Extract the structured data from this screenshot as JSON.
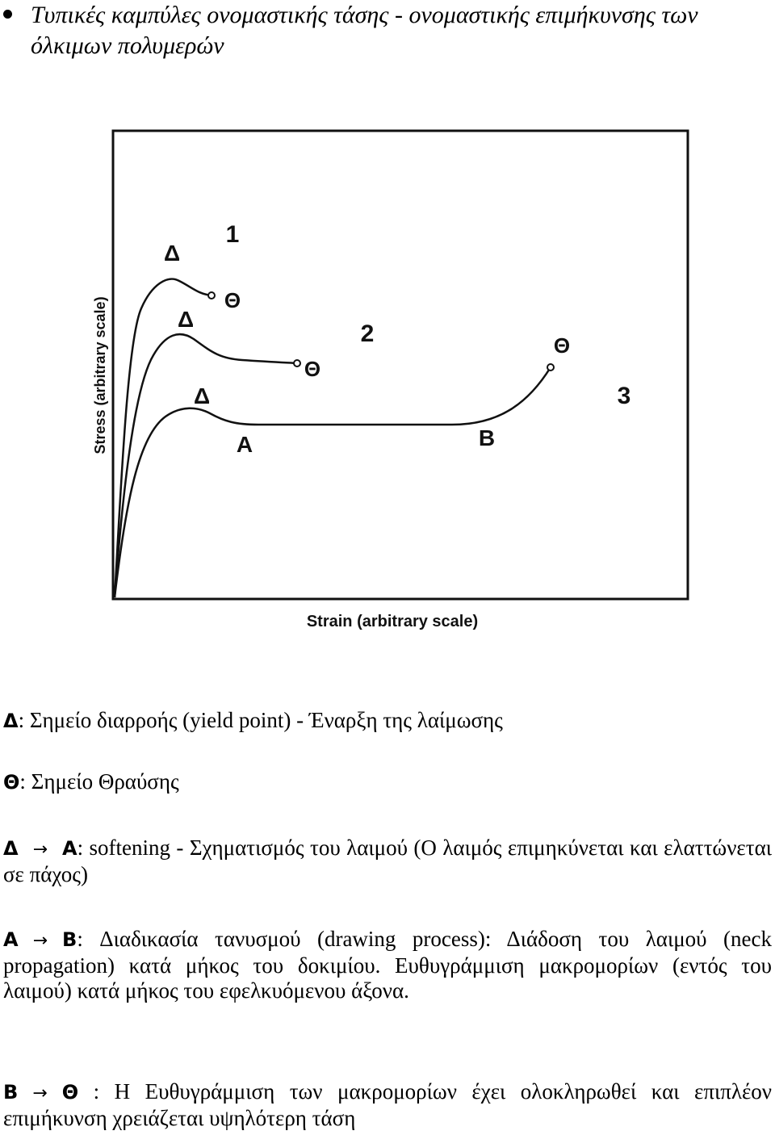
{
  "heading": "Τυπικές καμπύλες ονομαστικής τάσης - ονομαστικής επιμήκυνσης των όλκιμων πολυμερών",
  "figure": {
    "y_axis_label": "Stress (arbitrary scale)",
    "x_axis_label": "Strain (arbitrary scale)",
    "curve_numbers": [
      "1",
      "2",
      "3"
    ],
    "point_labels": {
      "delta": "Δ",
      "theta": "Θ",
      "a": "A",
      "b": "B"
    }
  },
  "legend": {
    "delta": {
      "symbol": "Δ",
      "text": ": Σημείο διαρροής (yield point) - Έναρξη της λαίμωσης"
    },
    "theta": {
      "symbol": "Θ",
      "text": ": Σημείο Θραύσης"
    },
    "delta_to_a": {
      "from": "Δ",
      "arrow": "→",
      "to": "A",
      "text": ": softening - Σχηματισμός του λαιμού (Ο λαιμός επιμηκύνεται και ελαττώνεται σε πάχος)"
    },
    "a_to_b": {
      "from": "A",
      "arrow": "→",
      "to": "B",
      "text": ": Διαδικασία τανυσμού (drawing process): Διάδοση του λαιμού (neck propagation) κατά μήκος του δοκιμίου. Ευθυγράμμιση μακρομορίων (εντός του λαιμού) κατά μήκος του εφελκυόμενου άξονα."
    },
    "b_to_theta": {
      "from": "B",
      "arrow": "→",
      "to": "Θ",
      "text": " : Η Ευθυγράμμιση των μακρομορίων έχει ολοκληρωθεί και επιπλέον επιμήκυνση χρειάζεται υψηλότερη τάση"
    }
  }
}
